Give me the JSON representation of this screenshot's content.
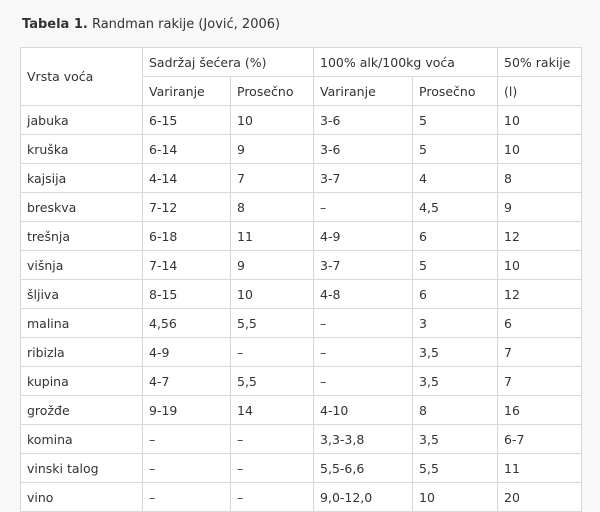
{
  "caption": {
    "label": "Tabela 1.",
    "text": " Randman rakije (Jović, 2006)"
  },
  "table": {
    "header": {
      "col0": "Vrsta voća",
      "group1": "Sadržaj šećera (%)",
      "group2": "100% alk/100kg voća",
      "group3": "50% rakije",
      "sub": [
        "Variranje",
        "Prosečno",
        "Variranje",
        "Prosečno",
        "(l)"
      ]
    },
    "rows": [
      [
        "jabuka",
        "6-15",
        "10",
        "3-6",
        "5",
        "10"
      ],
      [
        "kruška",
        "6-14",
        "9",
        "3-6",
        "5",
        "10"
      ],
      [
        "kajsija",
        "4-14",
        "7",
        "3-7",
        "4",
        "8"
      ],
      [
        "breskva",
        "7-12",
        "8",
        "–",
        "4,5",
        "9"
      ],
      [
        "trešnja",
        "6-18",
        "11",
        "4-9",
        "6",
        "12"
      ],
      [
        "višnja",
        "7-14",
        "9",
        "3-7",
        "5",
        "10"
      ],
      [
        "šljiva",
        "8-15",
        "10",
        "4-8",
        "6",
        "12"
      ],
      [
        "malina",
        "4,56",
        "5,5",
        "–",
        "3",
        "6"
      ],
      [
        "ribizla",
        "4-9",
        "–",
        "–",
        "3,5",
        "7"
      ],
      [
        "kupina",
        "4-7",
        "5,5",
        "–",
        "3,5",
        "7"
      ],
      [
        "grožđe",
        "9-19",
        "14",
        "4-10",
        "8",
        "16"
      ],
      [
        "komina",
        "–",
        "–",
        "3,3-3,8",
        "3,5",
        "6-7"
      ],
      [
        "vinski talog",
        "–",
        "–",
        "5,5-6,6",
        "5,5",
        "11"
      ],
      [
        "vino",
        "–",
        "–",
        "9,0-12,0",
        "10",
        "20"
      ]
    ]
  }
}
